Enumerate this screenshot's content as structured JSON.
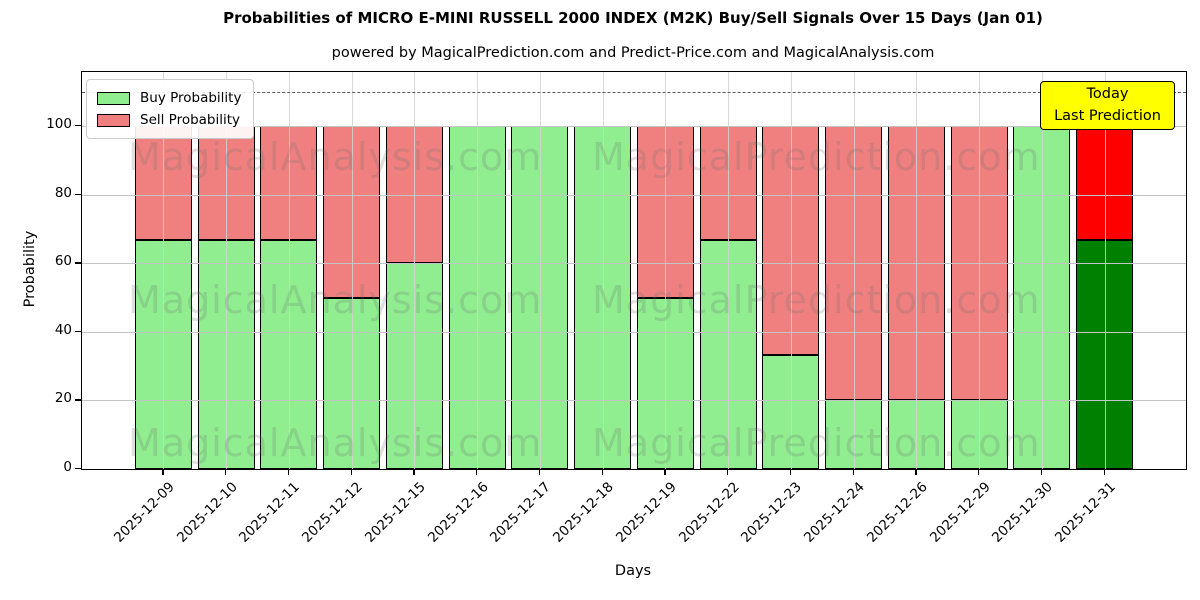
{
  "chart_data": {
    "type": "bar",
    "stacked": true,
    "title": "Probabilities of MICRO E-MINI RUSSELL 2000 INDEX (M2K) Buy/Sell Signals Over 15 Days (Jan 01)",
    "subtitle": "powered by MagicalPrediction.com and Predict-Price.com and MagicalAnalysis.com",
    "xlabel": "Days",
    "ylabel": "Probability",
    "categories": [
      "2025-12-09",
      "2025-12-10",
      "2025-12-11",
      "2025-12-12",
      "2025-12-15",
      "2025-12-16",
      "2025-12-17",
      "2025-12-18",
      "2025-12-19",
      "2025-12-22",
      "2025-12-23",
      "2025-12-24",
      "2025-12-26",
      "2025-12-29",
      "2025-12-30",
      "2025-12-31"
    ],
    "series": [
      {
        "name": "Buy Probability",
        "color": "#90ee90",
        "values": [
          66.7,
          66.7,
          66.7,
          50,
          60,
          100,
          100,
          100,
          50,
          66.7,
          33.3,
          20,
          20,
          20,
          100,
          66.7
        ]
      },
      {
        "name": "Sell Probability",
        "color": "#f08080",
        "values": [
          33.3,
          33.3,
          33.3,
          50,
          40,
          0,
          0,
          0,
          50,
          33.3,
          66.7,
          80,
          80,
          80,
          0,
          33.3
        ]
      }
    ],
    "highlight": {
      "index": 15,
      "buy_color": "#008000",
      "sell_color": "#ff0000"
    },
    "yticks": [
      0,
      20,
      40,
      60,
      80,
      100
    ],
    "ylim": [
      0,
      115.8
    ],
    "dashed_line_y": 110,
    "grid": true,
    "legend_position": "upper left",
    "annotation": {
      "line1": "Today",
      "line2": "Last Prediction",
      "bg_color": "#ffff00"
    },
    "watermark": {
      "left": "MagicalAnalysis.com",
      "right": "MagicalPrediction.com",
      "rows": 3
    }
  }
}
